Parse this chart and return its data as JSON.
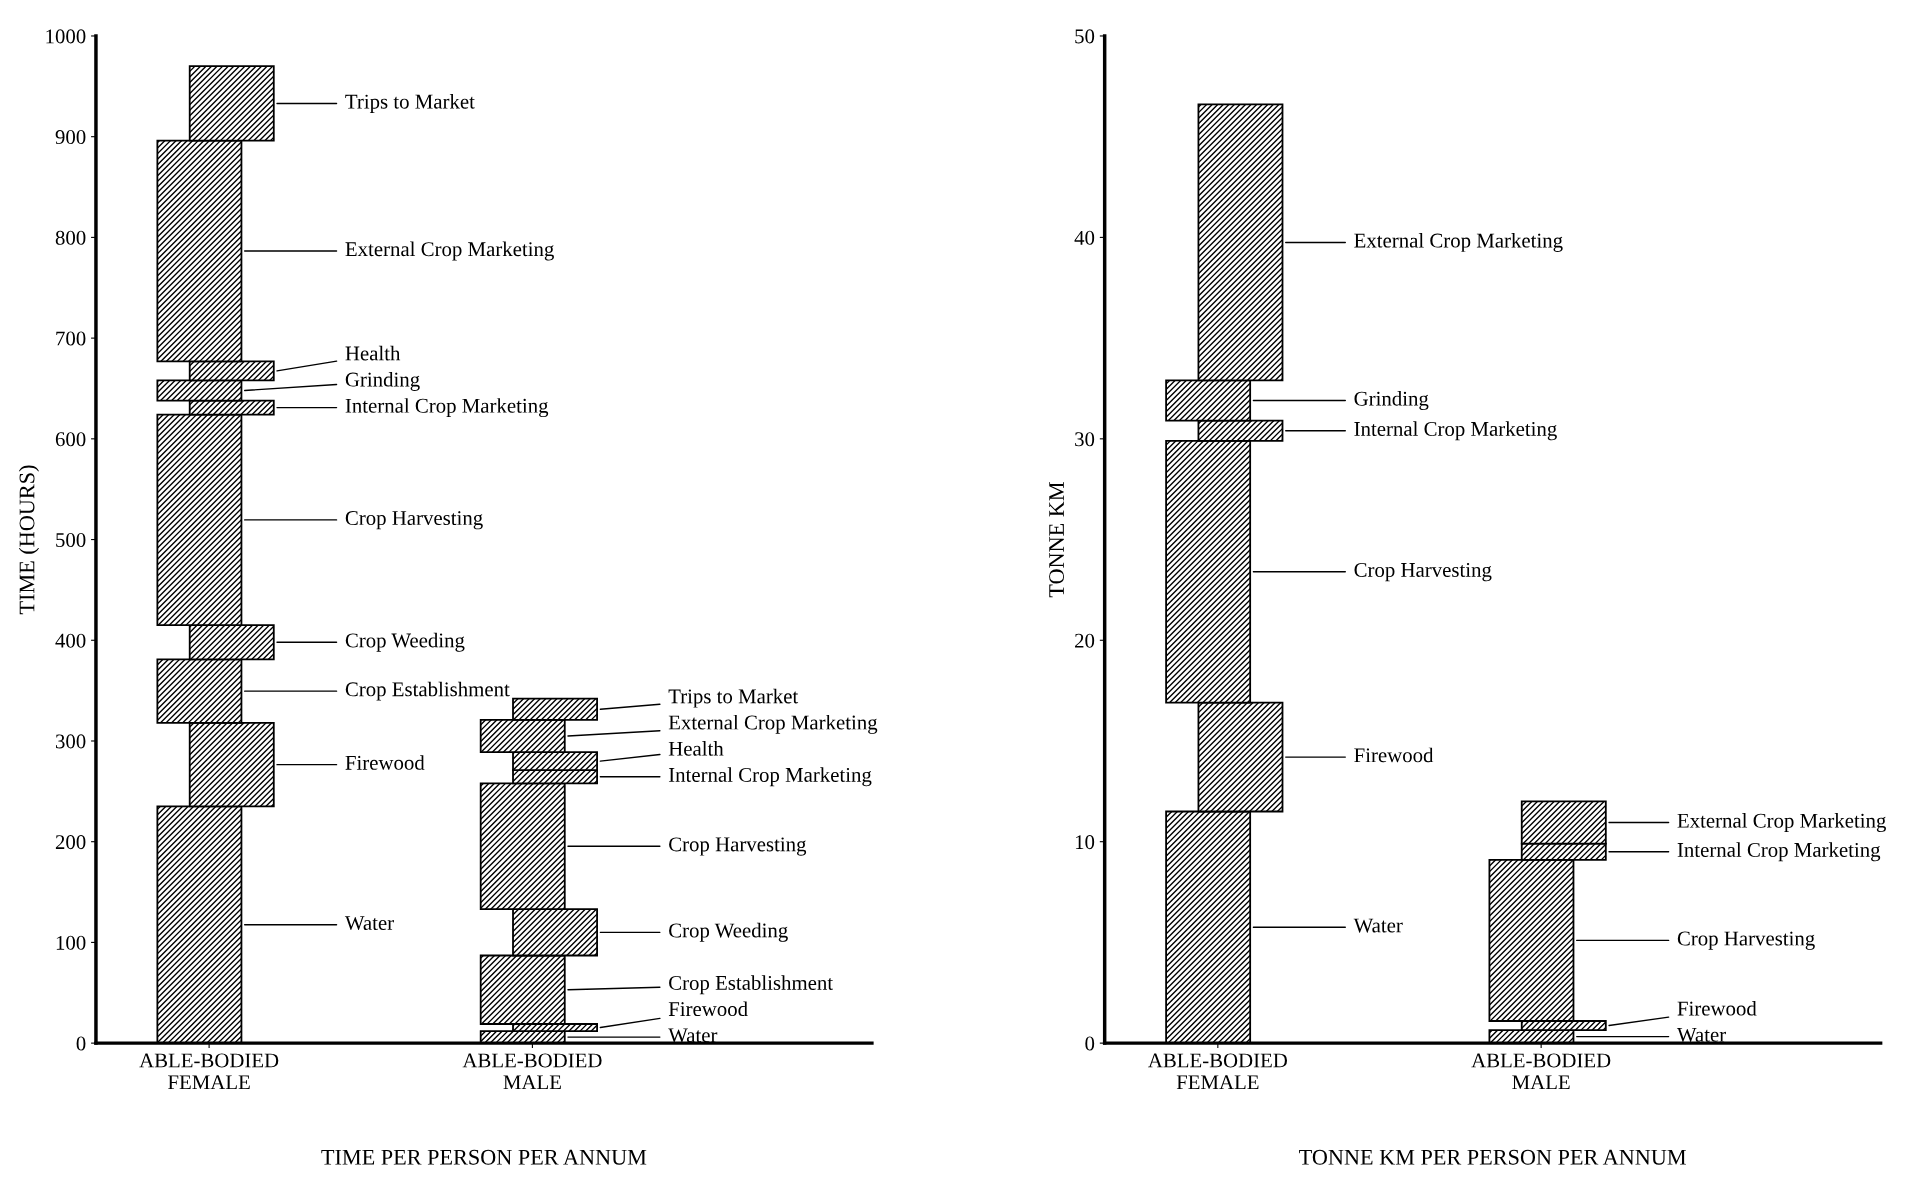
{
  "chart_data": [
    {
      "type": "bar",
      "stacked": true,
      "xlabel": "TIME PER PERSON PER ANNUM",
      "ylabel": "TIME (HOURS)",
      "categories": [
        "ABLE-BODIED\nFEMALE",
        "ABLE-BODIED\nMALE"
      ],
      "ylim": [
        0,
        1000
      ],
      "yticks": [
        0,
        100,
        200,
        300,
        400,
        500,
        600,
        700,
        800,
        900,
        1000
      ],
      "series": [
        {
          "name": "Water",
          "values": [
            235,
            12
          ]
        },
        {
          "name": "Firewood",
          "values": [
            83,
            7
          ]
        },
        {
          "name": "Crop Establishment",
          "values": [
            63,
            68
          ]
        },
        {
          "name": "Crop Weeding",
          "values": [
            34,
            46
          ]
        },
        {
          "name": "Crop Harvesting",
          "values": [
            209,
            125
          ]
        },
        {
          "name": "Internal Crop Marketing",
          "values": [
            14,
            13
          ]
        },
        {
          "name": "Grinding",
          "values": [
            20,
            null
          ]
        },
        {
          "name": "Health",
          "values": [
            19,
            18
          ]
        },
        {
          "name": "External Crop Marketing",
          "values": [
            219,
            32
          ]
        },
        {
          "name": "Trips to Market",
          "values": [
            74,
            21
          ]
        }
      ]
    },
    {
      "type": "bar",
      "stacked": true,
      "xlabel": "TONNE KM PER PERSON PER ANNUM",
      "ylabel": "TONNE KM",
      "categories": [
        "ABLE-BODIED\nFEMALE",
        "ABLE-BODIED\nMALE"
      ],
      "ylim": [
        0,
        50
      ],
      "yticks": [
        0,
        10,
        20,
        30,
        40,
        50
      ],
      "series": [
        {
          "name": "Water",
          "values": [
            11.5,
            0.65
          ]
        },
        {
          "name": "Firewood",
          "values": [
            5.4,
            0.45
          ]
        },
        {
          "name": "Crop Harvesting",
          "values": [
            13.0,
            8.0
          ]
        },
        {
          "name": "Internal Crop Marketing",
          "values": [
            1.0,
            0.8
          ]
        },
        {
          "name": "Grinding",
          "values": [
            2.0,
            null
          ]
        },
        {
          "name": "External Crop Marketing",
          "values": [
            13.7,
            2.1
          ]
        }
      ]
    }
  ]
}
